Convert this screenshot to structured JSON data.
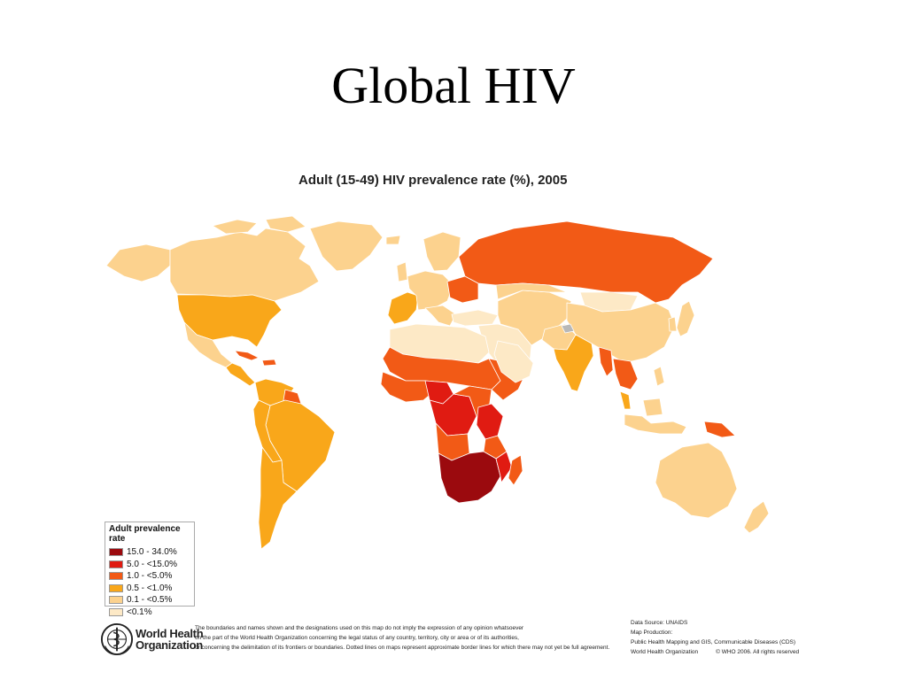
{
  "slide": {
    "title": "Global HIV"
  },
  "map": {
    "title": "Adult (15-49) HIV prevalence rate (%), 2005",
    "colors": {
      "c15to34": "#9b0a0e",
      "c5to15": "#e01b12",
      "c1to5": "#f25a16",
      "c05to1": "#f9a71a",
      "c01to05": "#fcd28e",
      "lt01": "#fde9c6",
      "nodata": "#b8b8b8"
    }
  },
  "legend": {
    "title": "Adult prevalence rate",
    "items": [
      {
        "label": "15.0 - 34.0%",
        "color": "#9b0a0e"
      },
      {
        "label": "5.0 - <15.0%",
        "color": "#e01b12"
      },
      {
        "label": "1.0 - <5.0%",
        "color": "#f25a16"
      },
      {
        "label": "0.5 - <1.0%",
        "color": "#f9a71a"
      },
      {
        "label": "0.1 - <0.5%",
        "color": "#fcd28e"
      },
      {
        "label": "<0.1%",
        "color": "#fde9c6"
      }
    ]
  },
  "footer": {
    "org_line1": "World Health",
    "org_line2": "Organization",
    "disclaimer": [
      "The boundaries and names shown and the designations used on this map do not imply the expression of any opinion whatsoever",
      "on the part of the World Health Organization concerning the legal status of any country, territory, city or area or of its authorities,",
      "or concerning the delimitation of its frontiers or boundaries.  Dotted lines on maps represent approximate border lines for which there may not yet be full agreement."
    ],
    "credits": {
      "source": "Data Source: UNAIDS",
      "production": "Map Production:",
      "unit": "Public Health Mapping and GIS, Communicable Diseases (CDS)",
      "org": "World Health Organization",
      "copyright": "© WHO 2006. All rights reserved"
    }
  }
}
